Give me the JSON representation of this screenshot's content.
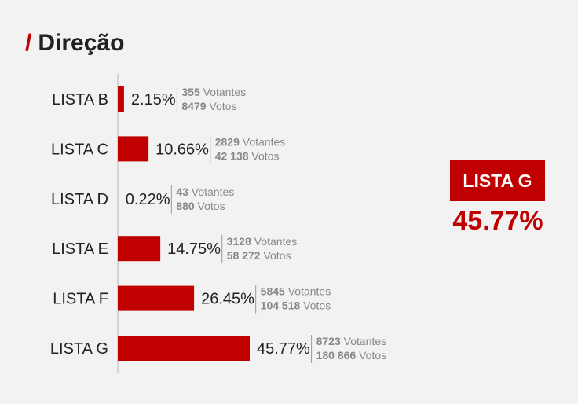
{
  "header": {
    "title": "Direção",
    "title_prefix": "/"
  },
  "accent_color": "#c00000",
  "winner": {
    "label": "LISTA G",
    "percent": "45.77%"
  },
  "chart_data": {
    "type": "bar",
    "orientation": "horizontal",
    "title": "Direção",
    "categories": [
      "LISTA B",
      "LISTA C",
      "LISTA D",
      "LISTA E",
      "LISTA F",
      "LISTA G"
    ],
    "values": [
      2.15,
      10.66,
      0.22,
      14.75,
      26.45,
      45.77
    ],
    "value_labels": [
      "2.15%",
      "10.66%",
      "0.22%",
      "14.75%",
      "26.45%",
      "45.77%"
    ],
    "voters": [
      {
        "count": "355",
        "unit": "Votantes"
      },
      {
        "count": "2829",
        "unit": "Votantes"
      },
      {
        "count": "43",
        "unit": "Votantes"
      },
      {
        "count": "3128",
        "unit": "Votantes"
      },
      {
        "count": "5845",
        "unit": "Votantes"
      },
      {
        "count": "8723",
        "unit": "Votantes"
      }
    ],
    "votes": [
      {
        "count": "8479",
        "unit": "Votos"
      },
      {
        "count": "42 138",
        "unit": "Votos"
      },
      {
        "count": "880",
        "unit": "Votos"
      },
      {
        "count": "58 272",
        "unit": "Votos"
      },
      {
        "count": "104 518",
        "unit": "Votos"
      },
      {
        "count": "180 866",
        "unit": "Votos"
      }
    ],
    "bar_color": "#c00000",
    "xlim": [
      0,
      45.77
    ],
    "grid": false,
    "legend": "none"
  }
}
